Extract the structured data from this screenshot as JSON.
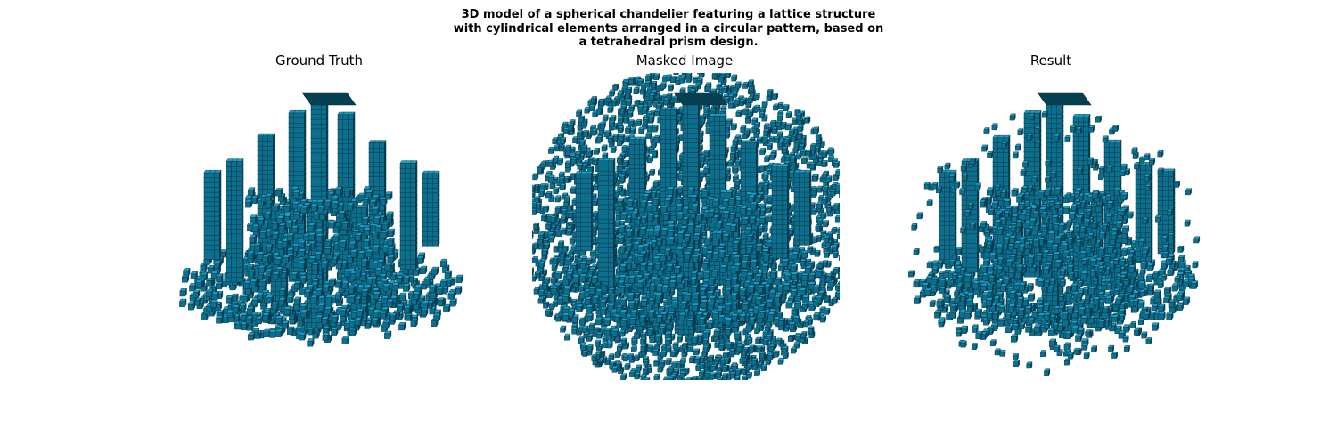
{
  "figure": {
    "title_lines": [
      "3D model of a spherical chandelier featuring a lattice structure",
      "with cylindrical elements arranged in a circular pattern, based on",
      "a tetrahedral prism design."
    ]
  },
  "panels": [
    {
      "title": "Ground Truth"
    },
    {
      "title": "Masked Image"
    },
    {
      "title": "Result"
    }
  ],
  "colors": {
    "voxel_top": "#1aa0c8",
    "voxel_side": "#0d6f8e",
    "voxel_dark": "#0a4a60",
    "outline": "#062b38",
    "cap": "#063f52"
  }
}
